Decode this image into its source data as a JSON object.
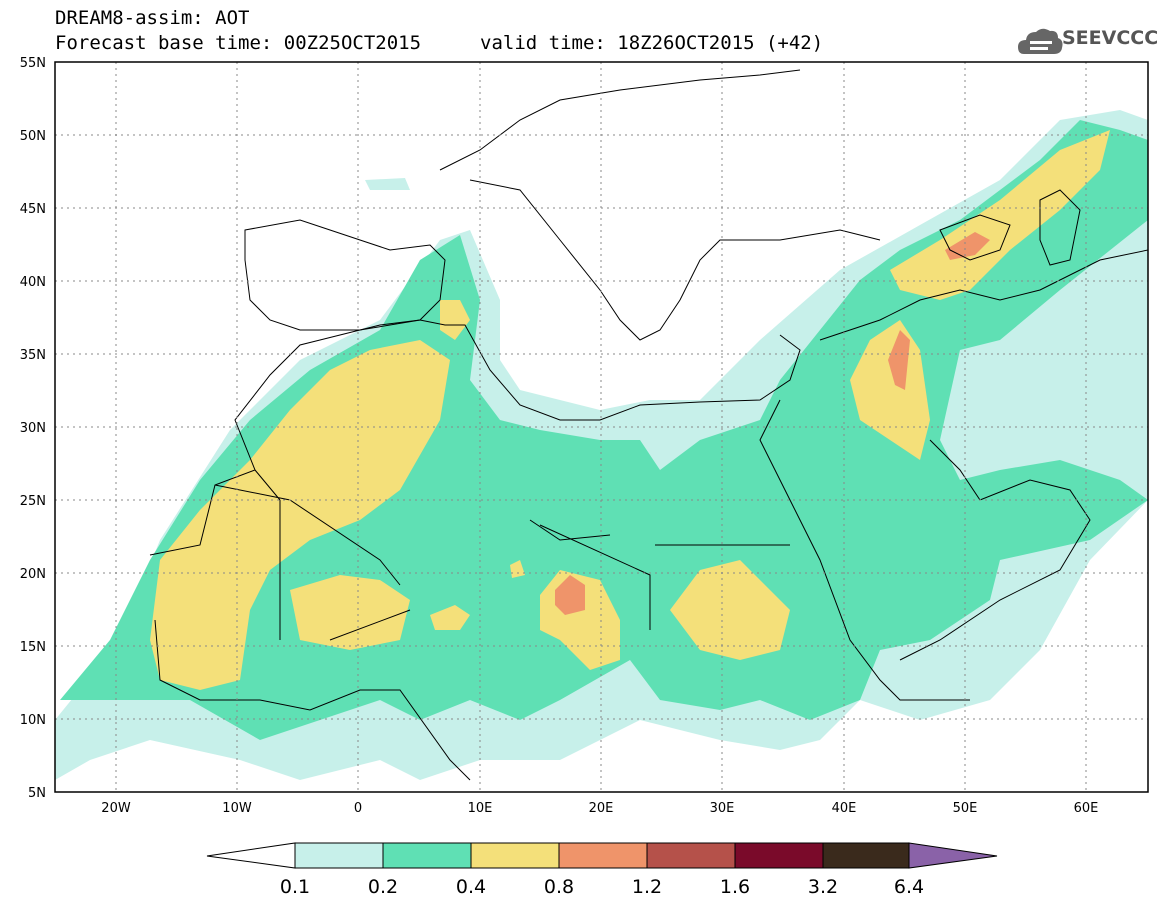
{
  "header": {
    "title": "DREAM8-assim: AOT",
    "base_time": "Forecast base time: 00Z25OCT2015",
    "valid_time": "valid time: 18Z26OCT2015 (+42)",
    "logo_text": "SEEVCCC",
    "logo_icon": "cloud-icon"
  },
  "map": {
    "lon_range": [
      -25,
      65
    ],
    "lat_range": [
      5,
      55
    ],
    "lat_ticks": [
      "5N",
      "10N",
      "15N",
      "20N",
      "25N",
      "30N",
      "35N",
      "40N",
      "45N",
      "50N",
      "55N"
    ],
    "lon_ticks": [
      "20W",
      "10W",
      "0",
      "10E",
      "20E",
      "30E",
      "40E",
      "50E",
      "60E"
    ],
    "grid": "dotted"
  },
  "colorbar": {
    "levels": [
      "0.1",
      "0.2",
      "0.4",
      "0.8",
      "1.2",
      "1.6",
      "3.2",
      "6.4"
    ],
    "colors": [
      "#ffffff",
      "#c7f0ea",
      "#5fe0b4",
      "#f4e07a",
      "#ef946a",
      "#b5514a",
      "#7a0a2a",
      "#3a2a1c",
      "#8a62a8"
    ]
  }
}
